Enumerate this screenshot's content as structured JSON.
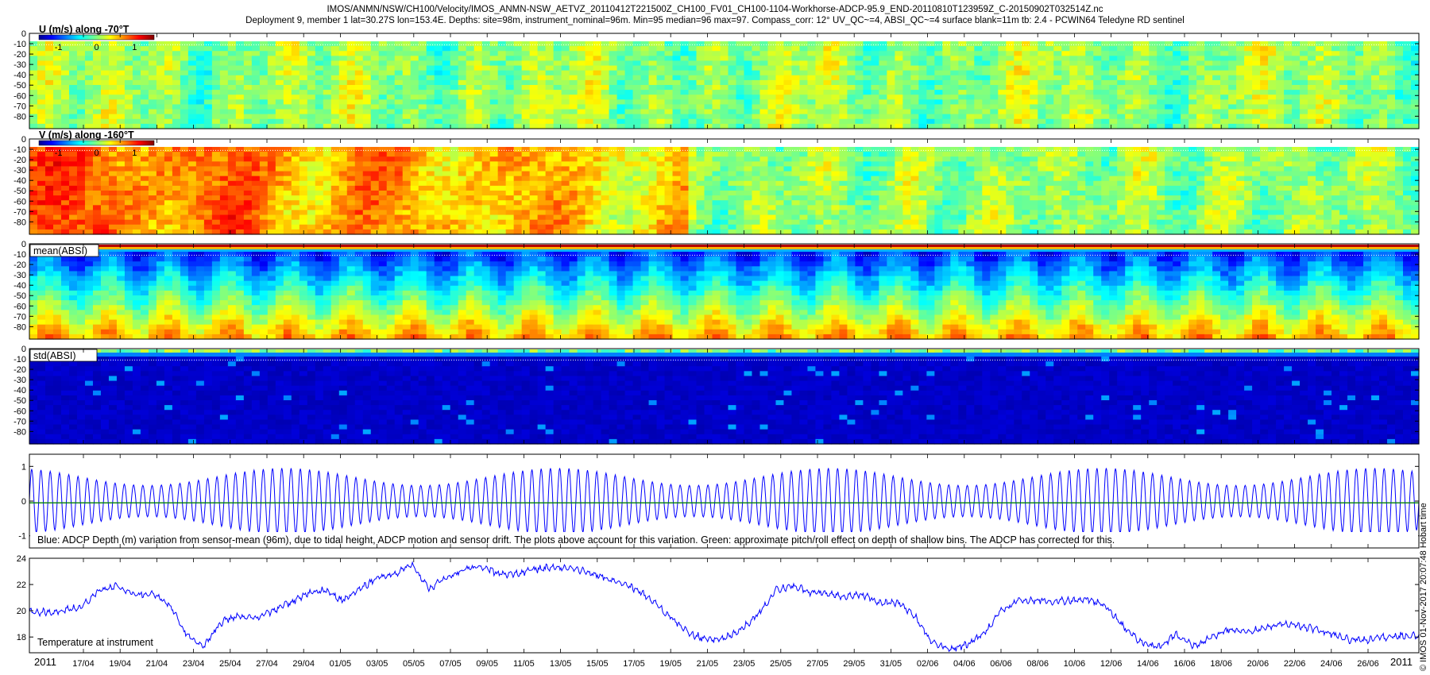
{
  "title": {
    "line1": "IMOS/ANMN/NSW/CH100/Velocity/IMOS_ANMN-NSW_AETVZ_20110412T221500Z_CH100_FV01_CH100-1104-Workhorse-ADCP-95.9_END-20110810T123959Z_C-20150902T032514Z.nc",
    "line2": "Deployment 9, member 1 lat=30.27S lon=153.4E. Depths: site=98m, instrument_nominal=96m. Min=95 median=96 max=97. Compass_corr: 12° UV_QC~=4, ABSI_QC~=4 surface blank=11m tb: 2.4 - PCWIN64 Teledyne RD sentinel"
  },
  "side_label": "© IMOS 01-Nov-2017 20:07:48 Hobart time",
  "chart_data": [
    {
      "type": "heatmap",
      "label": "U (m/s) along -70°T",
      "colorbar_ticks": [
        "-1",
        "0",
        "1"
      ],
      "y_ticks": [
        "0",
        "-10",
        "-20",
        "-30",
        "-40",
        "-50",
        "-60",
        "-70",
        "-80"
      ],
      "ylim": [
        -92,
        0
      ],
      "colormap": "jet",
      "surface_blank_depth": -11
    },
    {
      "type": "heatmap",
      "label": "V (m/s) along -160°T",
      "colorbar_ticks": [
        "-1",
        "0",
        "1"
      ],
      "y_ticks": [
        "0",
        "-10",
        "-20",
        "-30",
        "-40",
        "-50",
        "-60",
        "-70",
        "-80"
      ],
      "ylim": [
        -92,
        0
      ],
      "colormap": "jet",
      "surface_blank_depth": -11
    },
    {
      "type": "heatmap",
      "label": "mean(ABSI)",
      "y_ticks": [
        "0",
        "-10",
        "-20",
        "-30",
        "-40",
        "-50",
        "-60",
        "-70",
        "-80"
      ],
      "ylim": [
        -92,
        0
      ],
      "colormap": "jet",
      "surface_blank_depth": -11
    },
    {
      "type": "heatmap",
      "label": "std(ABSI)",
      "y_ticks": [
        "0",
        "-10",
        "-20",
        "-30",
        "-40",
        "-50",
        "-60",
        "-70",
        "-80"
      ],
      "ylim": [
        -92,
        0
      ],
      "colormap": "jet",
      "surface_blank_depth": -11
    },
    {
      "type": "line",
      "y_ticks": [
        "1",
        "0",
        "-1"
      ],
      "ylim": [
        -1.35,
        1.35
      ],
      "series": [
        {
          "color": "#0000ff",
          "amplitude_range": [
            0.45,
            0.95
          ],
          "tidal_cycles": 150
        },
        {
          "color": "#008000",
          "approx_value": -0.05
        }
      ],
      "annotation": "Blue: ADCP Depth (m) variation from sensor-mean (96m), due to tidal height, ADCP motion and sensor drift. The plots above account for this variation. Green: approximate pitch/roll effect on depth of shallow bins. The ADCP has corrected for this."
    },
    {
      "type": "line",
      "label": "Temperature at instrument",
      "y_ticks": [
        "24",
        "22",
        "20",
        "18"
      ],
      "ylim": [
        16.8,
        24
      ],
      "series": [
        {
          "color": "#0000ff",
          "x_day": [
            0,
            3,
            6,
            8,
            10,
            12,
            14,
            16,
            18,
            20,
            22,
            24,
            26,
            28,
            30,
            32,
            34,
            36,
            38,
            40,
            42,
            44,
            46,
            48,
            50,
            52,
            54,
            56,
            58,
            60,
            62,
            64,
            66,
            68,
            70,
            72,
            74,
            76,
            78,
            80,
            82,
            84,
            86,
            88,
            90,
            92,
            94,
            96,
            98,
            100,
            102,
            104,
            106,
            108,
            110,
            112,
            114,
            116,
            118,
            120,
            122,
            124,
            126,
            128,
            130,
            132,
            134,
            136,
            138,
            140,
            142,
            144,
            146,
            148,
            150,
            152,
            154,
            156,
            158,
            160
          ],
          "temp": [
            19.9,
            19.9,
            20.3,
            21.5,
            21.9,
            21.2,
            21.3,
            20.6,
            18.3,
            17.2,
            19.1,
            19.6,
            19.4,
            20.0,
            20.6,
            21.3,
            21.6,
            20.8,
            21.6,
            22.5,
            22.8,
            23.5,
            21.7,
            22.5,
            23.1,
            23.4,
            22.8,
            22.8,
            23.1,
            23.3,
            23.2,
            23.0,
            22.6,
            22.2,
            21.6,
            20.6,
            19.4,
            18.3,
            17.8,
            17.9,
            18.6,
            19.8,
            21.6,
            21.9,
            21.4,
            21.3,
            21.1,
            21.2,
            20.6,
            20.6,
            19.6,
            17.5,
            17.1,
            17.4,
            18.3,
            20.1,
            20.8,
            20.8,
            20.7,
            20.8,
            20.9,
            20.3,
            18.8,
            17.6,
            17.2,
            18.2,
            17.3,
            17.9,
            18.6,
            18.4,
            18.7,
            19.0,
            18.9,
            18.6,
            18.2,
            17.8,
            17.8,
            18.0,
            18.1,
            18.1
          ]
        }
      ]
    }
  ],
  "x_axis": {
    "year_label": "2011",
    "end_year_label": "2011",
    "date_ticks": [
      "17/04",
      "19/04",
      "21/04",
      "23/04",
      "25/04",
      "27/04",
      "29/04",
      "01/05",
      "03/05",
      "05/05",
      "07/05",
      "09/05",
      "11/05",
      "13/05",
      "15/05",
      "17/05",
      "19/05",
      "21/05",
      "23/05",
      "25/05",
      "27/05",
      "29/05",
      "31/05",
      "02/06",
      "04/06",
      "06/06",
      "08/06",
      "10/06",
      "12/06",
      "14/06",
      "16/06",
      "18/06",
      "20/06",
      "22/06",
      "24/06",
      "26/06"
    ]
  }
}
